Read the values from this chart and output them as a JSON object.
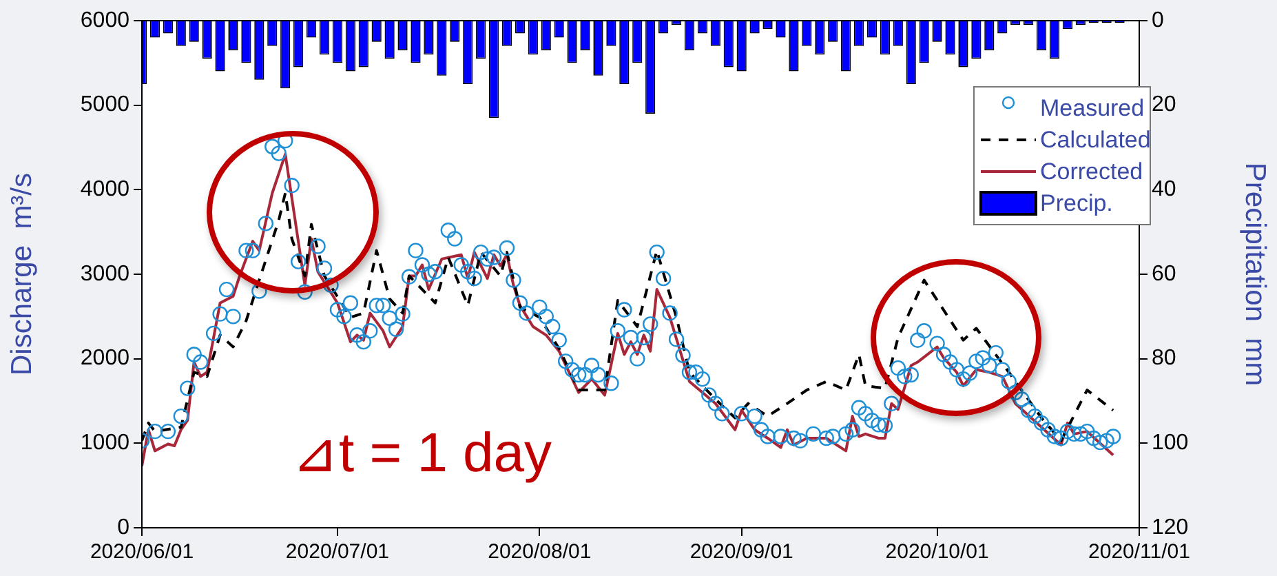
{
  "chart_data": {
    "type": "line",
    "ylabel": "Discharge  m³/s",
    "y2label": "Precipitation  mm",
    "xlim": [
      "2020-06-01",
      "2020-11-01"
    ],
    "xticks": [
      {
        "value": "2020-06-01",
        "label": "2020/06/01"
      },
      {
        "value": "2020-07-01",
        "label": "2020/07/01"
      },
      {
        "value": "2020-08-01",
        "label": "2020/08/01"
      },
      {
        "value": "2020-09-01",
        "label": "2020/09/01"
      },
      {
        "value": "2020-10-01",
        "label": "2020/10/01"
      },
      {
        "value": "2020-11-01",
        "label": "2020/11/01"
      }
    ],
    "ylim": [
      0,
      6000
    ],
    "yticks": [
      0,
      1000,
      2000,
      3000,
      4000,
      5000,
      6000
    ],
    "y2lim": [
      120,
      0
    ],
    "y2ticks": [
      0,
      20,
      40,
      60,
      80,
      100,
      120
    ],
    "legend": "top right",
    "annotations": [
      "⊿t = 1 day"
    ],
    "series": [
      {
        "name": "Measured",
        "type": "scatter",
        "marker": "circle",
        "color": "#1f8fd6",
        "x": [
          "2020-06-01",
          "2020-06-03",
          "2020-06-05",
          "2020-06-07",
          "2020-06-08",
          "2020-06-09",
          "2020-06-10",
          "2020-06-12",
          "2020-06-13",
          "2020-06-14",
          "2020-06-15",
          "2020-06-17",
          "2020-06-18",
          "2020-06-19",
          "2020-06-20",
          "2020-06-21",
          "2020-06-22",
          "2020-06-23",
          "2020-06-24",
          "2020-06-25",
          "2020-06-26",
          "2020-06-28",
          "2020-06-29",
          "2020-06-30",
          "2020-07-01",
          "2020-07-02",
          "2020-07-03",
          "2020-07-04",
          "2020-07-05",
          "2020-07-06",
          "2020-07-07",
          "2020-07-08",
          "2020-07-09",
          "2020-07-10",
          "2020-07-11",
          "2020-07-12",
          "2020-07-13",
          "2020-07-14",
          "2020-07-15",
          "2020-07-16",
          "2020-07-18",
          "2020-07-19",
          "2020-07-20",
          "2020-07-21",
          "2020-07-22",
          "2020-07-23",
          "2020-07-24",
          "2020-07-25",
          "2020-07-27",
          "2020-07-28",
          "2020-07-29",
          "2020-07-30",
          "2020-08-01",
          "2020-08-02",
          "2020-08-03",
          "2020-08-04",
          "2020-08-05",
          "2020-08-06",
          "2020-08-07",
          "2020-08-08",
          "2020-08-09",
          "2020-08-10",
          "2020-08-12",
          "2020-08-13",
          "2020-08-14",
          "2020-08-15",
          "2020-08-16",
          "2020-08-17",
          "2020-08-18",
          "2020-08-19",
          "2020-08-20",
          "2020-08-21",
          "2020-08-22",
          "2020-08-23",
          "2020-08-24",
          "2020-08-25",
          "2020-08-26",
          "2020-08-27",
          "2020-08-28",
          "2020-08-29",
          "2020-09-01",
          "2020-09-03",
          "2020-09-04",
          "2020-09-05",
          "2020-09-07",
          "2020-09-09",
          "2020-09-10",
          "2020-09-12",
          "2020-09-14",
          "2020-09-15",
          "2020-09-17",
          "2020-09-18",
          "2020-09-19",
          "2020-09-20",
          "2020-09-21",
          "2020-09-22",
          "2020-09-23",
          "2020-09-24",
          "2020-09-25",
          "2020-09-26",
          "2020-09-27",
          "2020-09-28",
          "2020-09-29",
          "2020-10-01",
          "2020-10-02",
          "2020-10-03",
          "2020-10-04",
          "2020-10-05",
          "2020-10-06",
          "2020-10-07",
          "2020-10-08",
          "2020-10-09",
          "2020-10-10",
          "2020-10-11",
          "2020-10-12",
          "2020-10-13",
          "2020-10-14",
          "2020-10-15",
          "2020-10-16",
          "2020-10-17",
          "2020-10-18",
          "2020-10-19",
          "2020-10-20",
          "2020-10-21",
          "2020-10-22",
          "2020-10-23",
          "2020-10-24",
          "2020-10-25",
          "2020-10-26",
          "2020-10-27",
          "2020-10-28"
        ],
        "values": [
          1030,
          1140,
          1140,
          1320,
          1650,
          2050,
          1960,
          2300,
          2530,
          2820,
          2500,
          3280,
          3280,
          2800,
          3600,
          4510,
          4430,
          4580,
          4050,
          3150,
          2790,
          3330,
          3070,
          2870,
          2580,
          2500,
          2660,
          2280,
          2200,
          2330,
          2630,
          2630,
          2480,
          2350,
          2530,
          2970,
          3280,
          3110,
          3000,
          3030,
          3520,
          3420,
          3110,
          3030,
          2950,
          3260,
          3180,
          3200,
          3310,
          2930,
          2660,
          2540,
          2610,
          2500,
          2380,
          2220,
          1970,
          1870,
          1810,
          1810,
          1920,
          1810,
          1710,
          2330,
          2580,
          2250,
          2000,
          2250,
          2410,
          3260,
          2950,
          2540,
          2230,
          2040,
          1840,
          1840,
          1760,
          1570,
          1470,
          1350,
          1350,
          1320,
          1160,
          1080,
          1080,
          1060,
          1030,
          1110,
          1060,
          1080,
          1110,
          1160,
          1420,
          1350,
          1270,
          1220,
          1210,
          1470,
          1890,
          1790,
          1810,
          2220,
          2330,
          2180,
          2050,
          1960,
          1870,
          1760,
          1830,
          1970,
          2010,
          1920,
          2070,
          1870,
          1730,
          1600,
          1520,
          1390,
          1320,
          1240,
          1160,
          1080,
          1060,
          1140,
          1110,
          1110,
          1140,
          1060,
          1010,
          1030,
          1080
        ]
      },
      {
        "name": "Calculated",
        "line_style": "dashed",
        "marker": "none",
        "color": "#000000",
        "x": [
          "2020-06-01",
          "2020-06-02",
          "2020-06-03",
          "2020-06-07",
          "2020-06-09",
          "2020-06-11",
          "2020-06-13",
          "2020-06-15",
          "2020-06-17",
          "2020-06-19",
          "2020-06-22",
          "2020-06-23",
          "2020-06-24",
          "2020-06-26",
          "2020-06-27",
          "2020-06-29",
          "2020-07-03",
          "2020-07-05",
          "2020-07-07",
          "2020-07-09",
          "2020-07-11",
          "2020-07-12",
          "2020-07-16",
          "2020-07-18",
          "2020-07-21",
          "2020-07-23",
          "2020-07-26",
          "2020-07-27",
          "2020-07-29",
          "2020-08-01",
          "2020-08-04",
          "2020-08-07",
          "2020-08-11",
          "2020-08-13",
          "2020-08-16",
          "2020-08-19",
          "2020-08-22",
          "2020-08-24",
          "2020-08-28",
          "2020-08-31",
          "2020-09-02",
          "2020-09-05",
          "2020-09-08",
          "2020-09-11",
          "2020-09-14",
          "2020-09-17",
          "2020-09-19",
          "2020-09-20",
          "2020-09-23",
          "2020-09-25",
          "2020-09-29",
          "2020-10-05",
          "2020-10-07",
          "2020-10-12",
          "2020-10-17",
          "2020-10-20",
          "2020-10-24",
          "2020-10-28"
        ],
        "values": [
          1030,
          1240,
          1140,
          1190,
          1840,
          1790,
          2280,
          2140,
          2450,
          2930,
          3640,
          3960,
          3420,
          2980,
          3590,
          2980,
          2490,
          2540,
          3280,
          2710,
          2540,
          2980,
          2660,
          3200,
          2630,
          3260,
          2980,
          3260,
          2610,
          2490,
          2120,
          1630,
          1630,
          2690,
          2380,
          3280,
          2490,
          1840,
          1520,
          1300,
          1470,
          1320,
          1470,
          1630,
          1730,
          1630,
          2050,
          1680,
          1650,
          2250,
          2930,
          2220,
          2360,
          1840,
          1300,
          1030,
          1630,
          1390
        ]
      },
      {
        "name": "Corrected",
        "line_style": "solid",
        "marker": "none",
        "color": "#a8283a",
        "x": [
          "2020-06-01",
          "2020-06-02",
          "2020-06-03",
          "2020-06-05",
          "2020-06-06",
          "2020-06-07",
          "2020-06-08",
          "2020-06-09",
          "2020-06-10",
          "2020-06-11",
          "2020-06-13",
          "2020-06-15",
          "2020-06-16",
          "2020-06-18",
          "2020-06-19",
          "2020-06-21",
          "2020-06-23",
          "2020-06-26",
          "2020-06-27",
          "2020-06-28",
          "2020-07-01",
          "2020-07-03",
          "2020-07-04",
          "2020-07-05",
          "2020-07-06",
          "2020-07-08",
          "2020-07-09",
          "2020-07-11",
          "2020-07-12",
          "2020-07-13",
          "2020-07-14",
          "2020-07-15",
          "2020-07-17",
          "2020-07-20",
          "2020-07-21",
          "2020-07-22",
          "2020-07-24",
          "2020-07-25",
          "2020-07-26",
          "2020-07-27",
          "2020-07-28",
          "2020-07-29",
          "2020-07-31",
          "2020-08-02",
          "2020-08-04",
          "2020-08-07",
          "2020-08-09",
          "2020-08-11",
          "2020-08-13",
          "2020-08-14",
          "2020-08-15",
          "2020-08-16",
          "2020-08-17",
          "2020-08-18",
          "2020-08-19",
          "2020-08-21",
          "2020-08-24",
          "2020-08-28",
          "2020-08-31",
          "2020-09-01",
          "2020-09-03",
          "2020-09-05",
          "2020-09-07",
          "2020-09-08",
          "2020-09-09",
          "2020-09-11",
          "2020-09-14",
          "2020-09-17",
          "2020-09-18",
          "2020-09-19",
          "2020-09-20",
          "2020-09-22",
          "2020-09-23",
          "2020-09-24",
          "2020-09-25",
          "2020-09-27",
          "2020-09-28",
          "2020-10-01",
          "2020-10-02",
          "2020-10-04",
          "2020-10-05",
          "2020-10-07",
          "2020-10-09",
          "2020-10-11",
          "2020-10-13",
          "2020-10-17",
          "2020-10-20",
          "2020-10-21",
          "2020-10-22",
          "2020-10-24",
          "2020-10-28"
        ],
        "values": [
          730,
          1160,
          910,
          990,
          970,
          1160,
          1270,
          1960,
          1790,
          1840,
          2660,
          2740,
          2980,
          3390,
          3280,
          3960,
          4420,
          2870,
          3420,
          3030,
          2660,
          2200,
          2280,
          2220,
          2540,
          2330,
          2140,
          2380,
          2980,
          2980,
          3110,
          2820,
          3180,
          3230,
          2950,
          3260,
          2950,
          3230,
          3100,
          3230,
          2870,
          2630,
          2380,
          2280,
          2090,
          1600,
          1760,
          1570,
          2300,
          2050,
          2200,
          2050,
          2280,
          2090,
          2820,
          2490,
          1730,
          1470,
          1160,
          1390,
          1160,
          1060,
          950,
          1160,
          980,
          1060,
          1060,
          910,
          1320,
          1080,
          1110,
          1060,
          1060,
          1470,
          1400,
          1920,
          1960,
          2140,
          2010,
          1840,
          1680,
          1870,
          1840,
          1790,
          1470,
          1190,
          980,
          1240,
          1110,
          1140,
          860
        ]
      },
      {
        "name": "Precip.",
        "type": "bar",
        "axis": "y2",
        "color": "#0000ff",
        "x": [
          "2020-06-01",
          "2020-06-03",
          "2020-06-05",
          "2020-06-07",
          "2020-06-09",
          "2020-06-11",
          "2020-06-13",
          "2020-06-15",
          "2020-06-17",
          "2020-06-19",
          "2020-06-21",
          "2020-06-23",
          "2020-06-25",
          "2020-06-27",
          "2020-06-29",
          "2020-07-01",
          "2020-07-03",
          "2020-07-05",
          "2020-07-07",
          "2020-07-09",
          "2020-07-11",
          "2020-07-13",
          "2020-07-15",
          "2020-07-17",
          "2020-07-19",
          "2020-07-21",
          "2020-07-23",
          "2020-07-25",
          "2020-07-27",
          "2020-07-29",
          "2020-07-31",
          "2020-08-02",
          "2020-08-04",
          "2020-08-06",
          "2020-08-08",
          "2020-08-10",
          "2020-08-12",
          "2020-08-14",
          "2020-08-16",
          "2020-08-18",
          "2020-08-20",
          "2020-08-22",
          "2020-08-24",
          "2020-08-26",
          "2020-08-28",
          "2020-08-30",
          "2020-09-01",
          "2020-09-03",
          "2020-09-05",
          "2020-09-07",
          "2020-09-09",
          "2020-09-11",
          "2020-09-13",
          "2020-09-15",
          "2020-09-17",
          "2020-09-19",
          "2020-09-21",
          "2020-09-23",
          "2020-09-25",
          "2020-09-27",
          "2020-09-29",
          "2020-10-01",
          "2020-10-03",
          "2020-10-05",
          "2020-10-07",
          "2020-10-09",
          "2020-10-11",
          "2020-10-13",
          "2020-10-15",
          "2020-10-17",
          "2020-10-19",
          "2020-10-21",
          "2020-10-23",
          "2020-10-25",
          "2020-10-27",
          "2020-10-29"
        ],
        "values": [
          15,
          4,
          3,
          6,
          5,
          9,
          12,
          7,
          10,
          14,
          6,
          16,
          11,
          4,
          8,
          10,
          12,
          11,
          5,
          9,
          7,
          10,
          8,
          13,
          5,
          15,
          9,
          23,
          6,
          3,
          8,
          7,
          4,
          10,
          7,
          13,
          6,
          15,
          10,
          22,
          3,
          1,
          7,
          3,
          6,
          11,
          12,
          3,
          2,
          4,
          12,
          6,
          8,
          5,
          12,
          6,
          4,
          8,
          6,
          15,
          10,
          5,
          8,
          11,
          9,
          7,
          3,
          1,
          1,
          7,
          9,
          2,
          1,
          0.5,
          0.5,
          0.5
        ]
      }
    ]
  }
}
